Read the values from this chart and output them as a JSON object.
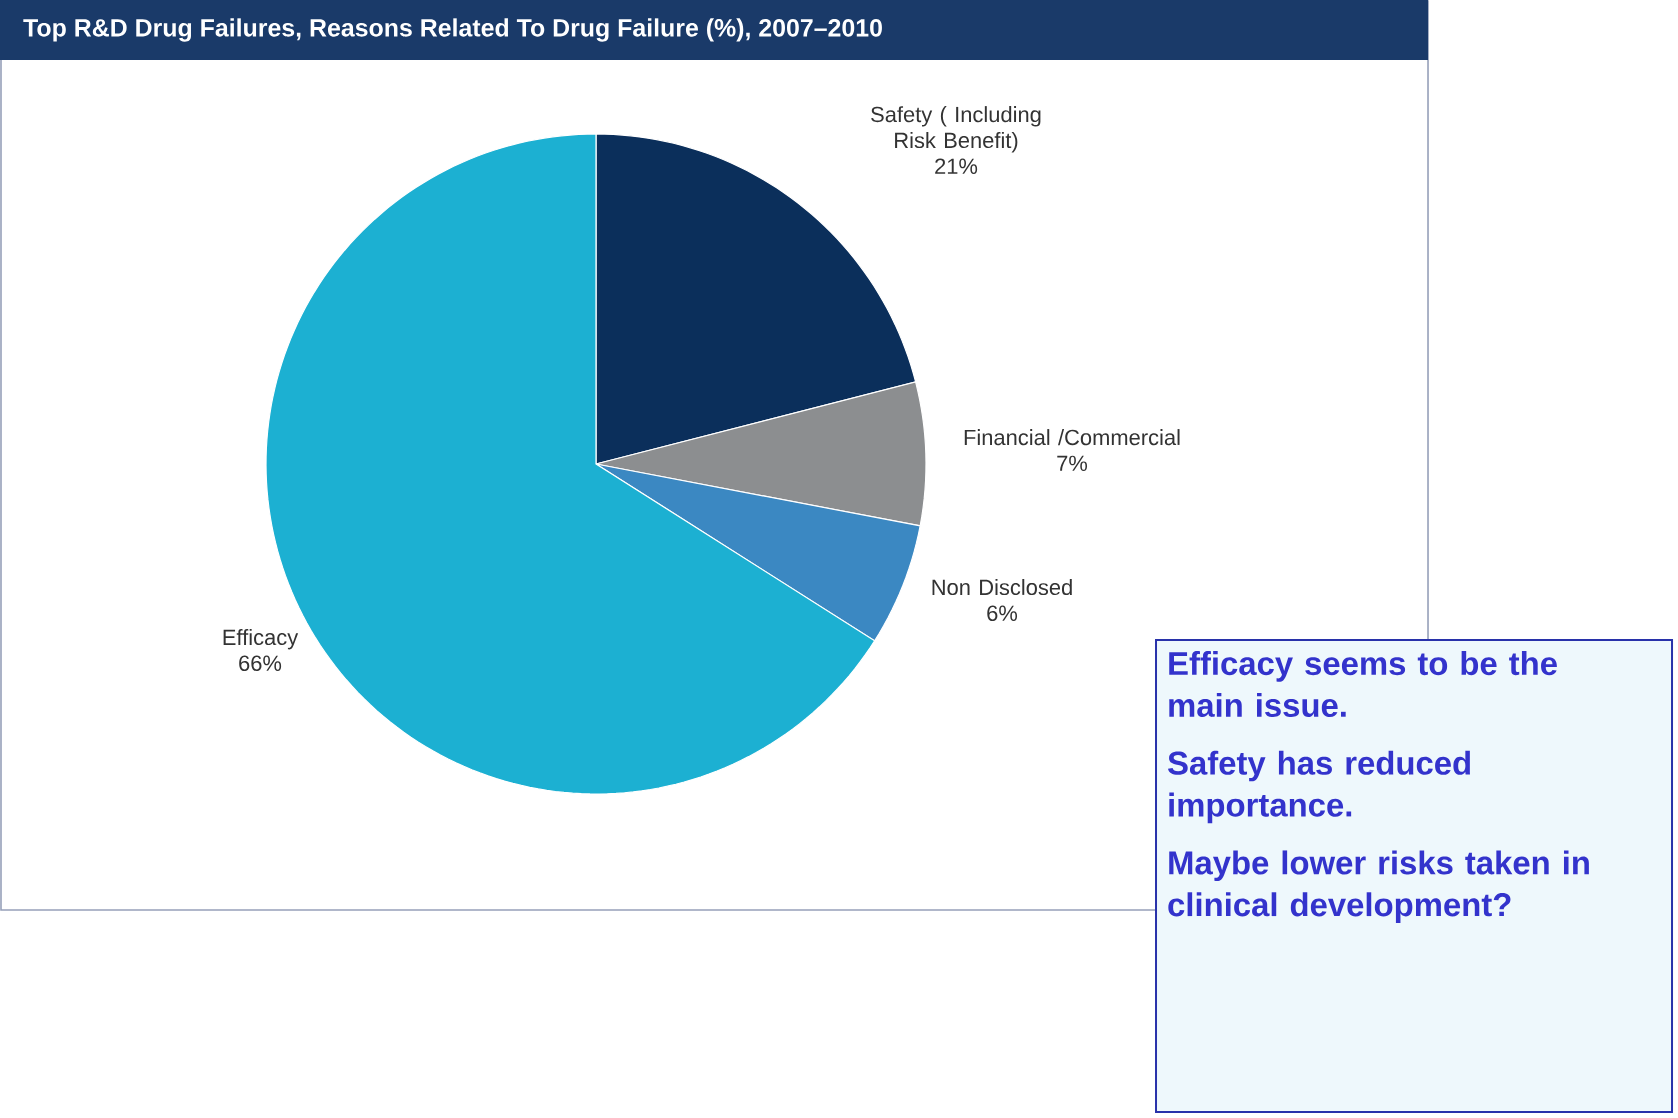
{
  "chart_data": {
    "type": "pie",
    "title": "Top R&D Drug Failures, Reasons Related To Drug Failure (%), 2007–2010",
    "categories": [
      "Safety ( Including Risk Benefit)",
      "Financial /Commercial",
      "Non Disclosed",
      "Efficacy"
    ],
    "values": [
      21,
      7,
      6,
      66
    ],
    "colors": [
      "#0b2f5b",
      "#8c8e90",
      "#3b88c2",
      "#1cb0d2"
    ],
    "value_labels": [
      "21%",
      "7%",
      "6%",
      "66%"
    ],
    "annotations": [
      "Efficacy seems to be the main issue.",
      "Safety has reduced importance.",
      "Maybe lower risks taken in clinical development?"
    ]
  }
}
